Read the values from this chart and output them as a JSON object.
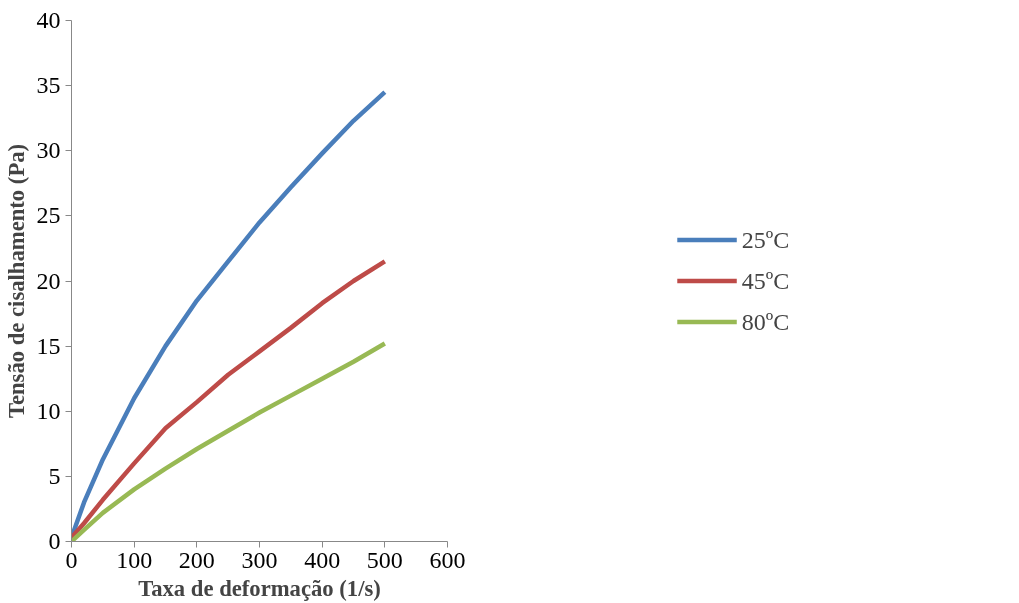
{
  "chart_data": {
    "type": "line",
    "xlabel": "Taxa de deformação (1/s)",
    "ylabel": "Tensão de cisalhamento (Pa)",
    "x": [
      0,
      20,
      50,
      100,
      150,
      200,
      250,
      300,
      350,
      400,
      450,
      500
    ],
    "series": [
      {
        "name": "25ºC",
        "color": "#4a7ebb",
        "values": [
          0.3,
          3.0,
          6.3,
          11.0,
          15.0,
          18.5,
          21.5,
          24.5,
          27.2,
          29.8,
          32.3,
          34.5
        ]
      },
      {
        "name": "45ºC",
        "color": "#be4b48",
        "values": [
          0.3,
          1.4,
          3.2,
          6.0,
          8.7,
          10.7,
          12.8,
          14.6,
          16.4,
          18.3,
          20.0,
          21.5
        ]
      },
      {
        "name": "80ºC",
        "color": "#98b954",
        "values": [
          0.0,
          0.9,
          2.2,
          4.0,
          5.6,
          7.1,
          8.5,
          9.9,
          11.2,
          12.5,
          13.8,
          15.2
        ]
      }
    ],
    "xlim": [
      0,
      600
    ],
    "xticks": [
      0,
      100,
      200,
      300,
      400,
      500,
      600
    ],
    "ylim": [
      0,
      40
    ],
    "yticks": [
      0,
      5,
      10,
      15,
      20,
      25,
      30,
      35,
      40
    ],
    "grid": false,
    "legend": "right",
    "marker": "none",
    "line_style": "solid"
  }
}
